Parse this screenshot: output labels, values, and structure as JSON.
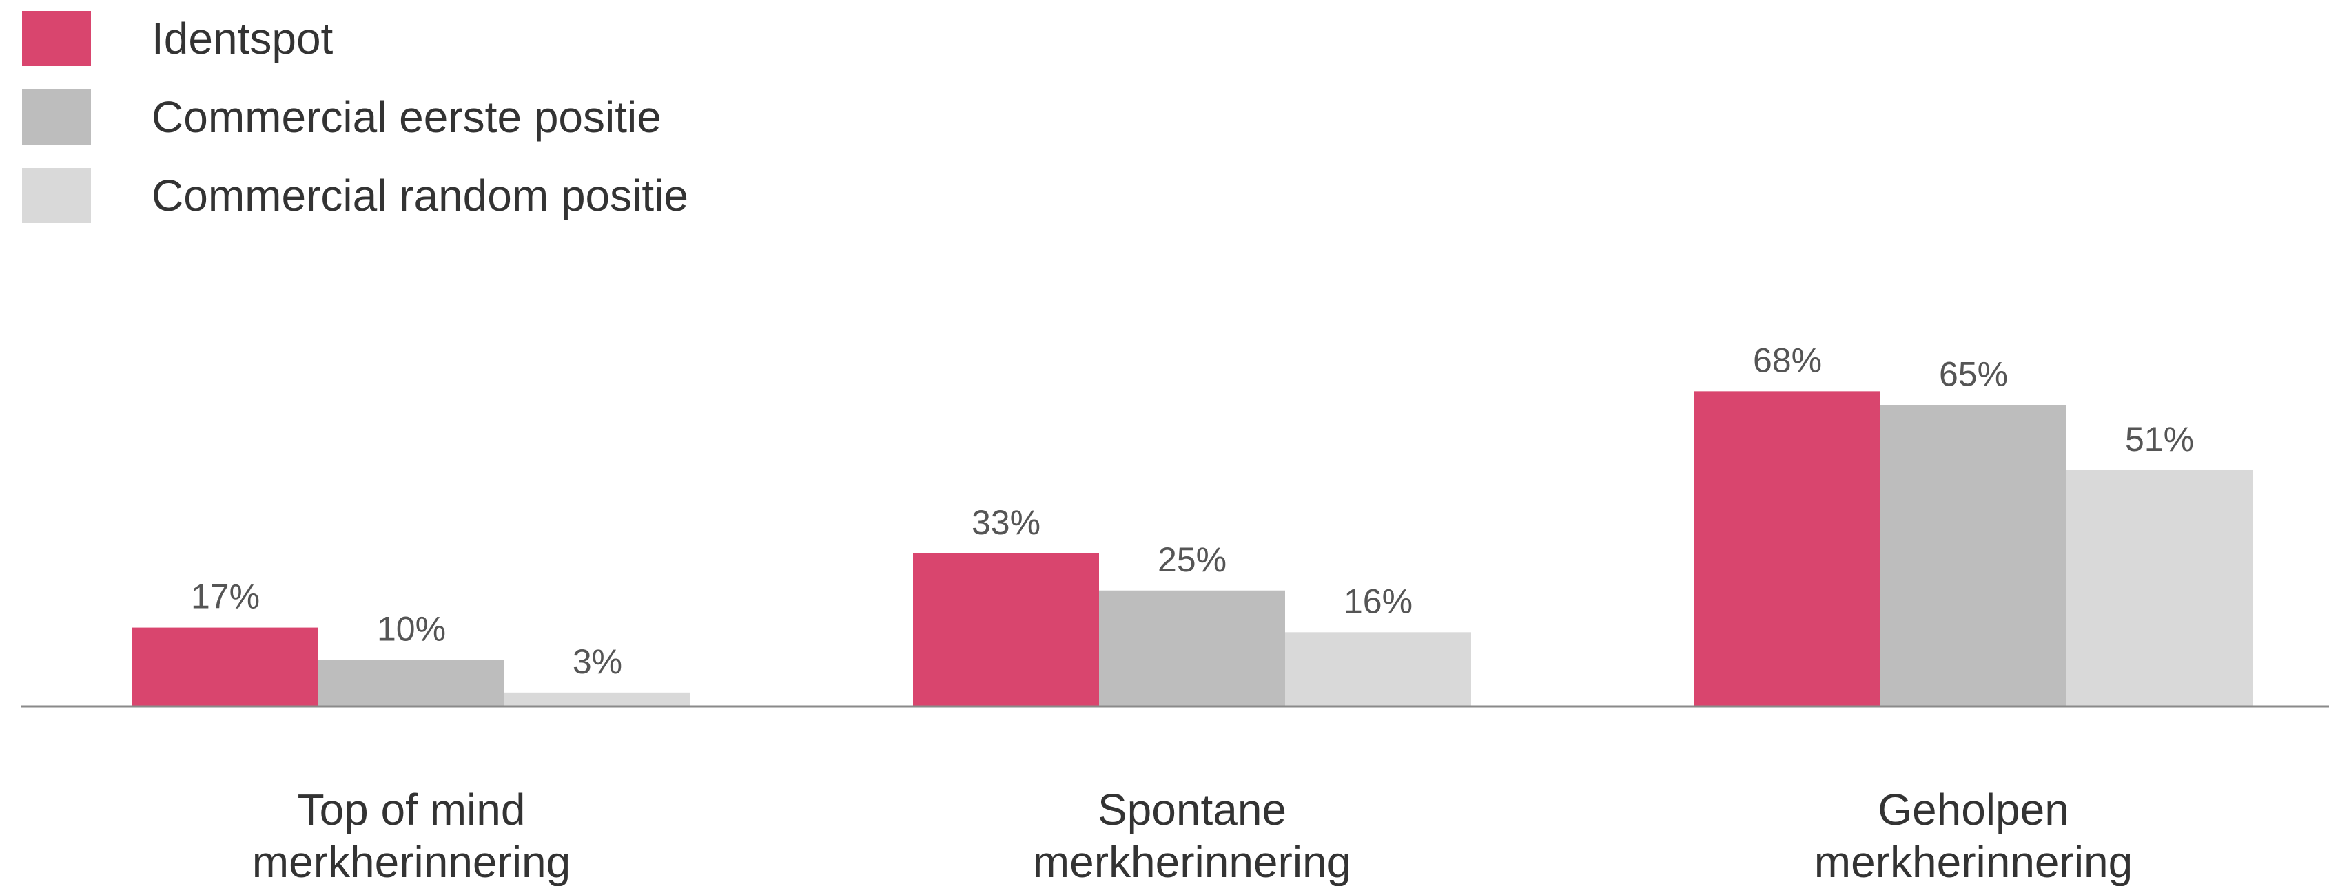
{
  "chart_data": {
    "type": "bar",
    "categories": [
      [
        "Top of mind",
        "merkherinnering"
      ],
      [
        "Spontane",
        "merkherinnering"
      ],
      [
        "Geholpen",
        "merkherinnering"
      ]
    ],
    "series": [
      {
        "name": "Identspot",
        "values": [
          17,
          33,
          68
        ],
        "labels": [
          "17%",
          "33%",
          "68%"
        ],
        "color": "#D9456E"
      },
      {
        "name": "Commercial eerste positie",
        "values": [
          10,
          25,
          65
        ],
        "labels": [
          "10%",
          "25%",
          "65%"
        ],
        "color": "#BDBDBD"
      },
      {
        "name": "Commercial random positie",
        "values": [
          3,
          16,
          51
        ],
        "labels": [
          "3%",
          "16%",
          "51%"
        ],
        "color": "#D9D9D9"
      }
    ],
    "ylim": [
      0,
      75
    ],
    "grid": false,
    "legend_position": "top-left",
    "title": "",
    "xlabel": "",
    "ylabel": ""
  }
}
